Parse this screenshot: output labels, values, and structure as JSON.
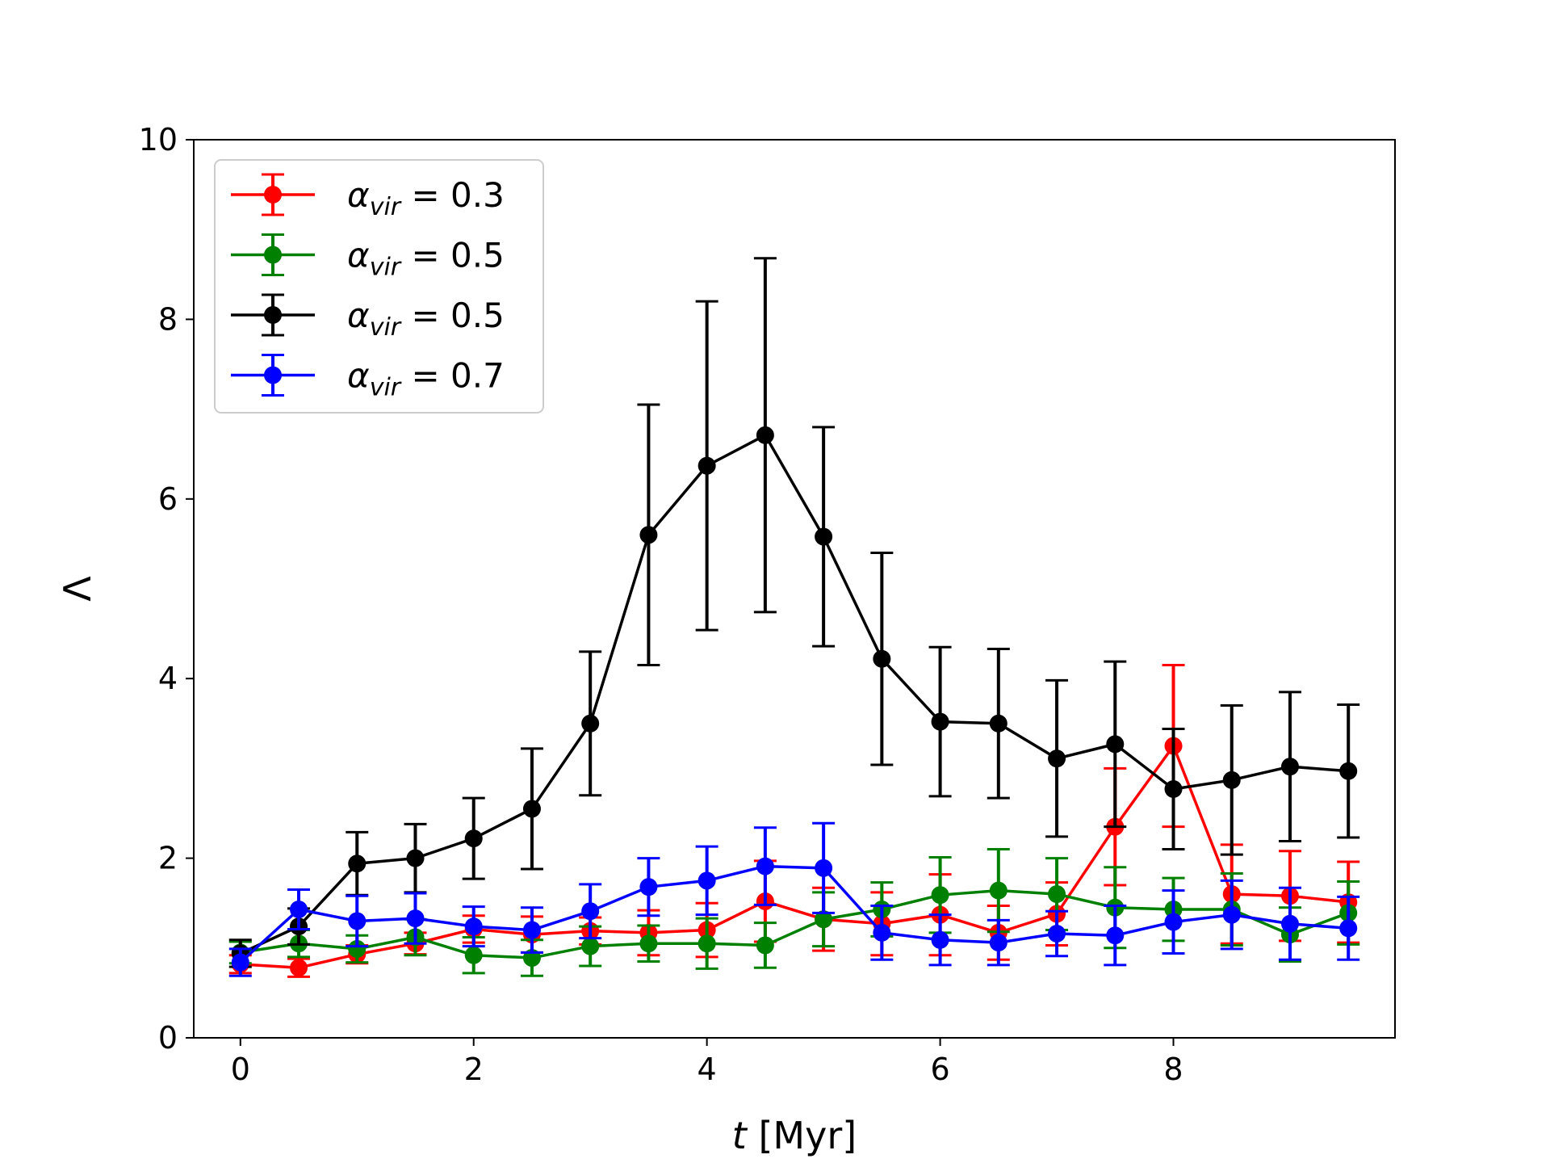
{
  "chart_data": {
    "type": "line",
    "title": "",
    "xlabel_var": "t",
    "xlabel_unit": " [Myr]",
    "ylabel": "Λ",
    "xlim": [
      -0.4,
      9.9
    ],
    "ylim": [
      0,
      10
    ],
    "xticks": [
      0,
      2,
      4,
      6,
      8
    ],
    "yticks": [
      0,
      2,
      4,
      6,
      8,
      10
    ],
    "grid": false,
    "legend_position": "top-left",
    "x": [
      0,
      0.5,
      1,
      1.5,
      2,
      2.5,
      3,
      3.5,
      4,
      4.5,
      5,
      5.5,
      6,
      6.5,
      7,
      7.5,
      8,
      8.5,
      9,
      9.5
    ],
    "series": [
      {
        "name": "α_vir = 0.3",
        "label_prefix": "α",
        "label_sub": "vir",
        "label_suffix": " = 0.3",
        "color": "#ff0000",
        "values": [
          0.82,
          0.78,
          0.93,
          1.05,
          1.21,
          1.15,
          1.19,
          1.17,
          1.2,
          1.52,
          1.32,
          1.27,
          1.37,
          1.17,
          1.38,
          2.35,
          3.25,
          1.6,
          1.58,
          1.51
        ],
        "errors": [
          0.1,
          0.1,
          0.1,
          0.12,
          0.15,
          0.2,
          0.15,
          0.25,
          0.3,
          0.45,
          0.35,
          0.35,
          0.45,
          0.3,
          0.35,
          0.65,
          0.9,
          0.55,
          0.5,
          0.45
        ]
      },
      {
        "name": "α_vir = 0.5",
        "label_prefix": "α",
        "label_sub": "vir",
        "label_suffix": " = 0.5",
        "color": "#008000",
        "values": [
          0.95,
          1.05,
          0.99,
          1.12,
          0.92,
          0.89,
          1.02,
          1.05,
          1.05,
          1.03,
          1.32,
          1.43,
          1.59,
          1.64,
          1.6,
          1.45,
          1.43,
          1.43,
          1.15,
          1.39
        ],
        "errors": [
          0.12,
          0.15,
          0.15,
          0.2,
          0.2,
          0.2,
          0.22,
          0.2,
          0.28,
          0.25,
          0.3,
          0.3,
          0.42,
          0.46,
          0.4,
          0.45,
          0.35,
          0.4,
          0.3,
          0.35
        ]
      },
      {
        "name": "α_vir = 0.5",
        "label_prefix": "α",
        "label_sub": "vir",
        "label_suffix": " = 0.5",
        "color": "#000000",
        "values": [
          0.94,
          1.24,
          1.94,
          2.0,
          2.22,
          2.55,
          3.5,
          5.6,
          6.37,
          6.71,
          5.58,
          4.22,
          3.52,
          3.5,
          3.11,
          3.27,
          2.77,
          2.87,
          3.02,
          2.97
        ],
        "errors": [
          0.15,
          0.2,
          0.35,
          0.38,
          0.45,
          0.67,
          0.8,
          1.45,
          1.83,
          1.97,
          1.22,
          1.18,
          0.83,
          0.83,
          0.87,
          0.92,
          0.67,
          0.83,
          0.83,
          0.74
        ]
      },
      {
        "name": "α_vir = 0.7",
        "label_prefix": "α",
        "label_sub": "vir",
        "label_suffix": " = 0.7",
        "color": "#0000ff",
        "values": [
          0.84,
          1.43,
          1.3,
          1.33,
          1.24,
          1.2,
          1.41,
          1.68,
          1.75,
          1.91,
          1.89,
          1.17,
          1.09,
          1.06,
          1.16,
          1.14,
          1.29,
          1.37,
          1.27,
          1.22
        ],
        "errors": [
          0.15,
          0.22,
          0.28,
          0.28,
          0.22,
          0.25,
          0.3,
          0.32,
          0.38,
          0.43,
          0.5,
          0.3,
          0.28,
          0.25,
          0.25,
          0.33,
          0.35,
          0.38,
          0.4,
          0.35
        ]
      }
    ]
  }
}
